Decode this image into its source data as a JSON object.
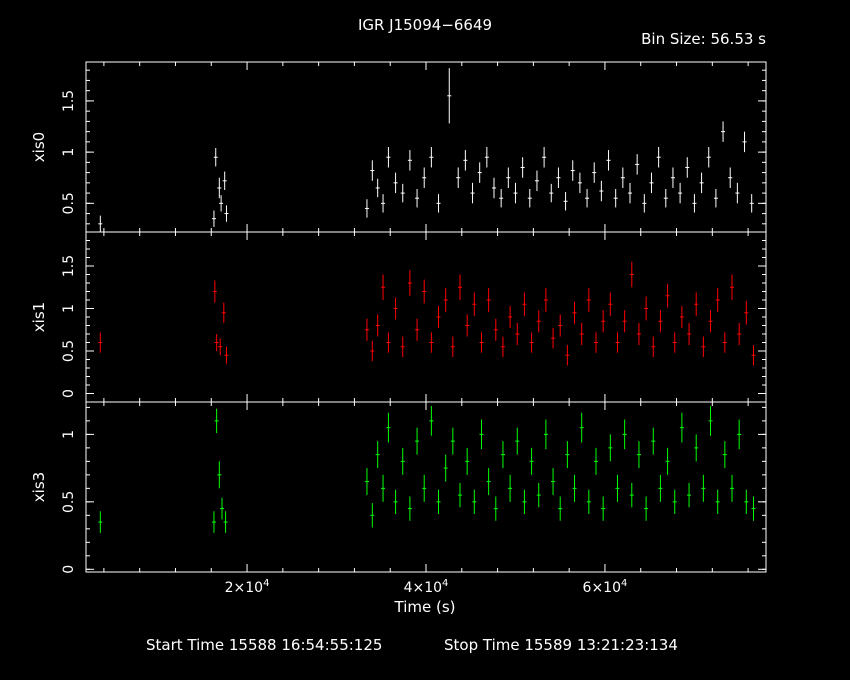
{
  "chart_data": {
    "type": "scatter",
    "title": "IGR J15094−6649",
    "bin_size": "Bin Size: 56.53 s",
    "xlabel": "Time (s)",
    "start_time_label": "Start Time 15588 16:54:55:125",
    "stop_time_label": "Stop Time 15589 13:21:23:134",
    "xlim": [
      2000,
      78000
    ],
    "xticks": [
      20000,
      40000,
      60000
    ],
    "xtick_labels": [
      [
        "2×10",
        "4"
      ],
      [
        "4×10",
        "4"
      ],
      [
        "6×10",
        "4"
      ]
    ],
    "panels": [
      {
        "name": "xis0",
        "ylabel": "xis0",
        "color": "#ffffff",
        "ylim": [
          0.22,
          1.88
        ],
        "yticks": [
          0.5,
          1,
          1.5
        ],
        "ytick_labels": [
          "0.5",
          "1",
          "1.5"
        ],
        "points": [
          [
            3600,
            0.3,
            0.08
          ],
          [
            16300,
            0.35,
            0.08
          ],
          [
            16500,
            0.95,
            0.09
          ],
          [
            16900,
            0.65,
            0.1
          ],
          [
            17100,
            0.5,
            0.08
          ],
          [
            17500,
            0.72,
            0.09
          ],
          [
            17700,
            0.4,
            0.08
          ],
          [
            33400,
            0.45,
            0.09
          ],
          [
            34000,
            0.82,
            0.1
          ],
          [
            34600,
            0.65,
            0.09
          ],
          [
            35200,
            0.5,
            0.09
          ],
          [
            35800,
            0.95,
            0.1
          ],
          [
            36600,
            0.7,
            0.1
          ],
          [
            37400,
            0.6,
            0.09
          ],
          [
            38200,
            0.92,
            0.1
          ],
          [
            39000,
            0.55,
            0.09
          ],
          [
            39800,
            0.75,
            0.1
          ],
          [
            40600,
            0.95,
            0.1
          ],
          [
            41400,
            0.5,
            0.09
          ],
          [
            42600,
            1.55,
            0.27
          ],
          [
            43600,
            0.75,
            0.1
          ],
          [
            44400,
            0.92,
            0.1
          ],
          [
            45200,
            0.6,
            0.1
          ],
          [
            46000,
            0.8,
            0.1
          ],
          [
            46800,
            0.95,
            0.1
          ],
          [
            47600,
            0.65,
            0.1
          ],
          [
            48400,
            0.55,
            0.09
          ],
          [
            49200,
            0.75,
            0.1
          ],
          [
            50000,
            0.6,
            0.1
          ],
          [
            50800,
            0.85,
            0.1
          ],
          [
            51600,
            0.55,
            0.09
          ],
          [
            52400,
            0.72,
            0.1
          ],
          [
            53200,
            0.95,
            0.1
          ],
          [
            54000,
            0.6,
            0.09
          ],
          [
            54800,
            0.75,
            0.1
          ],
          [
            55600,
            0.52,
            0.09
          ],
          [
            56400,
            0.82,
            0.1
          ],
          [
            57200,
            0.7,
            0.1
          ],
          [
            58000,
            0.55,
            0.09
          ],
          [
            58800,
            0.8,
            0.1
          ],
          [
            59600,
            0.62,
            0.1
          ],
          [
            60400,
            0.92,
            0.1
          ],
          [
            61200,
            0.55,
            0.09
          ],
          [
            62000,
            0.75,
            0.1
          ],
          [
            62800,
            0.6,
            0.1
          ],
          [
            63600,
            0.88,
            0.1
          ],
          [
            64400,
            0.5,
            0.09
          ],
          [
            65200,
            0.7,
            0.1
          ],
          [
            66000,
            0.95,
            0.1
          ],
          [
            66800,
            0.55,
            0.09
          ],
          [
            67600,
            0.75,
            0.1
          ],
          [
            68400,
            0.6,
            0.1
          ],
          [
            69200,
            0.85,
            0.1
          ],
          [
            70000,
            0.5,
            0.09
          ],
          [
            70800,
            0.7,
            0.1
          ],
          [
            71600,
            0.95,
            0.1
          ],
          [
            72400,
            0.55,
            0.09
          ],
          [
            73200,
            1.2,
            0.1
          ],
          [
            74000,
            0.75,
            0.1
          ],
          [
            74800,
            0.6,
            0.1
          ],
          [
            75600,
            1.1,
            0.1
          ],
          [
            76400,
            0.5,
            0.09
          ]
        ]
      },
      {
        "name": "xis1",
        "ylabel": "xis1",
        "color": "#ff0000",
        "ylim": [
          -0.1,
          1.9
        ],
        "yticks": [
          0,
          0.5,
          1,
          1.5
        ],
        "ytick_labels": [
          "0",
          "0.5",
          "1",
          "1.5"
        ],
        "points": [
          [
            3600,
            0.6,
            0.12
          ],
          [
            16400,
            1.2,
            0.13
          ],
          [
            16600,
            0.6,
            0.1
          ],
          [
            17000,
            0.55,
            0.1
          ],
          [
            17400,
            0.95,
            0.12
          ],
          [
            17700,
            0.45,
            0.1
          ],
          [
            33400,
            0.75,
            0.13
          ],
          [
            34000,
            0.5,
            0.12
          ],
          [
            34600,
            0.8,
            0.13
          ],
          [
            35200,
            1.25,
            0.15
          ],
          [
            35800,
            0.6,
            0.12
          ],
          [
            36600,
            1.0,
            0.13
          ],
          [
            37400,
            0.55,
            0.12
          ],
          [
            38200,
            1.3,
            0.15
          ],
          [
            39000,
            0.75,
            0.13
          ],
          [
            39800,
            1.2,
            0.14
          ],
          [
            40600,
            0.6,
            0.12
          ],
          [
            41400,
            0.9,
            0.13
          ],
          [
            42200,
            1.1,
            0.14
          ],
          [
            43000,
            0.55,
            0.12
          ],
          [
            43800,
            1.25,
            0.15
          ],
          [
            44600,
            0.8,
            0.13
          ],
          [
            45400,
            1.05,
            0.14
          ],
          [
            46200,
            0.6,
            0.12
          ],
          [
            47000,
            1.1,
            0.14
          ],
          [
            47800,
            0.75,
            0.13
          ],
          [
            48600,
            0.55,
            0.12
          ],
          [
            49400,
            0.9,
            0.13
          ],
          [
            50200,
            0.7,
            0.13
          ],
          [
            51000,
            1.05,
            0.14
          ],
          [
            51800,
            0.6,
            0.12
          ],
          [
            52600,
            0.85,
            0.13
          ],
          [
            53400,
            1.1,
            0.14
          ],
          [
            54200,
            0.65,
            0.12
          ],
          [
            55000,
            0.8,
            0.13
          ],
          [
            55800,
            0.45,
            0.12
          ],
          [
            56600,
            0.95,
            0.13
          ],
          [
            57400,
            0.7,
            0.13
          ],
          [
            58200,
            1.1,
            0.14
          ],
          [
            59000,
            0.6,
            0.12
          ],
          [
            59800,
            0.85,
            0.13
          ],
          [
            60600,
            1.05,
            0.14
          ],
          [
            61400,
            0.6,
            0.12
          ],
          [
            62200,
            0.85,
            0.13
          ],
          [
            63000,
            1.4,
            0.15
          ],
          [
            63800,
            0.7,
            0.13
          ],
          [
            64600,
            1.0,
            0.14
          ],
          [
            65400,
            0.55,
            0.12
          ],
          [
            66200,
            0.85,
            0.13
          ],
          [
            67000,
            1.15,
            0.14
          ],
          [
            67800,
            0.6,
            0.12
          ],
          [
            68600,
            0.9,
            0.13
          ],
          [
            69400,
            0.7,
            0.13
          ],
          [
            70200,
            1.05,
            0.14
          ],
          [
            71000,
            0.55,
            0.12
          ],
          [
            71800,
            0.85,
            0.13
          ],
          [
            72600,
            1.1,
            0.14
          ],
          [
            73400,
            0.6,
            0.12
          ],
          [
            74200,
            1.25,
            0.15
          ],
          [
            75000,
            0.7,
            0.13
          ],
          [
            75800,
            0.95,
            0.14
          ],
          [
            76600,
            0.45,
            0.12
          ]
        ]
      },
      {
        "name": "xis3",
        "ylabel": "xis3",
        "color": "#00ff00",
        "ylim": [
          -0.02,
          1.24
        ],
        "yticks": [
          0,
          0.5,
          1
        ],
        "ytick_labels": [
          "0",
          "0.5",
          "1"
        ],
        "points": [
          [
            3600,
            0.35,
            0.08
          ],
          [
            16300,
            0.35,
            0.08
          ],
          [
            16600,
            1.1,
            0.09
          ],
          [
            16900,
            0.7,
            0.1
          ],
          [
            17200,
            0.45,
            0.08
          ],
          [
            17600,
            0.35,
            0.08
          ],
          [
            33400,
            0.65,
            0.1
          ],
          [
            34000,
            0.4,
            0.09
          ],
          [
            34600,
            0.85,
            0.1
          ],
          [
            35200,
            0.6,
            0.1
          ],
          [
            35800,
            1.05,
            0.11
          ],
          [
            36600,
            0.5,
            0.09
          ],
          [
            37400,
            0.8,
            0.1
          ],
          [
            38200,
            0.45,
            0.09
          ],
          [
            39000,
            0.95,
            0.1
          ],
          [
            39800,
            0.6,
            0.1
          ],
          [
            40600,
            1.1,
            0.11
          ],
          [
            41400,
            0.5,
            0.09
          ],
          [
            42200,
            0.75,
            0.1
          ],
          [
            43000,
            0.95,
            0.1
          ],
          [
            43800,
            0.55,
            0.09
          ],
          [
            44600,
            0.8,
            0.1
          ],
          [
            45400,
            0.5,
            0.09
          ],
          [
            46200,
            1.0,
            0.11
          ],
          [
            47000,
            0.65,
            0.1
          ],
          [
            47800,
            0.45,
            0.09
          ],
          [
            48600,
            0.85,
            0.1
          ],
          [
            49400,
            0.6,
            0.1
          ],
          [
            50200,
            0.95,
            0.1
          ],
          [
            51000,
            0.5,
            0.09
          ],
          [
            51800,
            0.8,
            0.1
          ],
          [
            52600,
            0.55,
            0.09
          ],
          [
            53400,
            1.0,
            0.11
          ],
          [
            54200,
            0.65,
            0.1
          ],
          [
            55000,
            0.45,
            0.09
          ],
          [
            55800,
            0.85,
            0.1
          ],
          [
            56600,
            0.6,
            0.1
          ],
          [
            57400,
            1.05,
            0.11
          ],
          [
            58200,
            0.5,
            0.09
          ],
          [
            59000,
            0.8,
            0.1
          ],
          [
            59800,
            0.45,
            0.09
          ],
          [
            60600,
            0.9,
            0.1
          ],
          [
            61400,
            0.6,
            0.1
          ],
          [
            62200,
            1.0,
            0.11
          ],
          [
            63000,
            0.55,
            0.09
          ],
          [
            63800,
            0.85,
            0.1
          ],
          [
            64600,
            0.45,
            0.09
          ],
          [
            65400,
            0.95,
            0.1
          ],
          [
            66200,
            0.6,
            0.1
          ],
          [
            67000,
            0.8,
            0.1
          ],
          [
            67800,
            0.5,
            0.09
          ],
          [
            68600,
            1.05,
            0.11
          ],
          [
            69400,
            0.55,
            0.09
          ],
          [
            70200,
            0.9,
            0.1
          ],
          [
            71000,
            0.6,
            0.1
          ],
          [
            71800,
            1.1,
            0.11
          ],
          [
            72600,
            0.5,
            0.09
          ],
          [
            73400,
            0.85,
            0.1
          ],
          [
            74200,
            0.6,
            0.1
          ],
          [
            75000,
            1.0,
            0.11
          ],
          [
            75800,
            0.5,
            0.09
          ],
          [
            76600,
            0.45,
            0.09
          ]
        ]
      }
    ]
  }
}
